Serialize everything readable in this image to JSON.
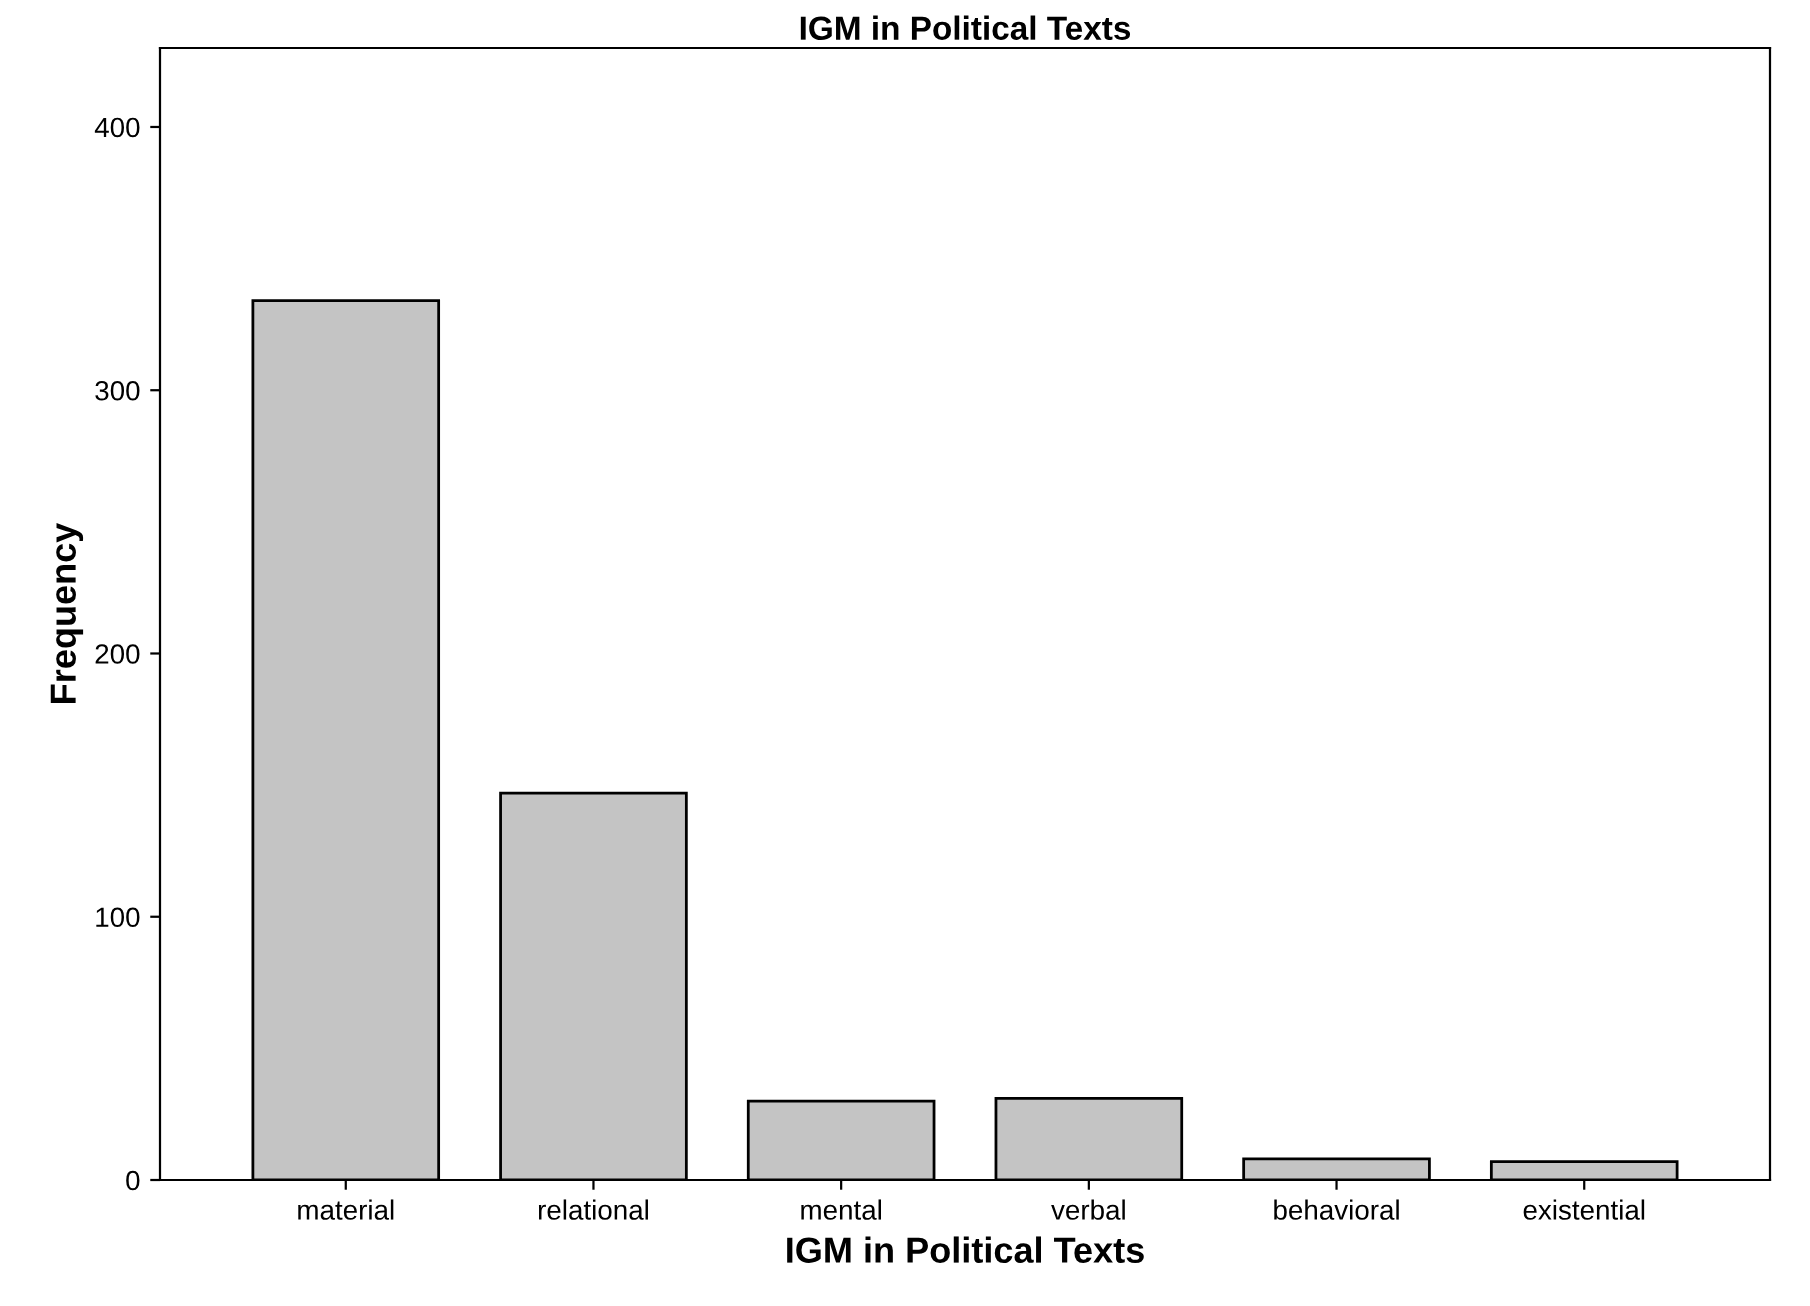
{
  "chart_data": {
    "type": "bar",
    "title": "IGM in Political Texts",
    "xlabel": "IGM in Political Texts",
    "ylabel": "Frequency",
    "categories": [
      "material",
      "relational",
      "mental",
      "verbal",
      "behavioral",
      "existential"
    ],
    "values": [
      334,
      147,
      30,
      31,
      8,
      7
    ],
    "color": "#c4c4c4",
    "ylim": [
      0,
      430
    ],
    "yticks": [
      0,
      100,
      200,
      300,
      400
    ],
    "grid": false
  }
}
